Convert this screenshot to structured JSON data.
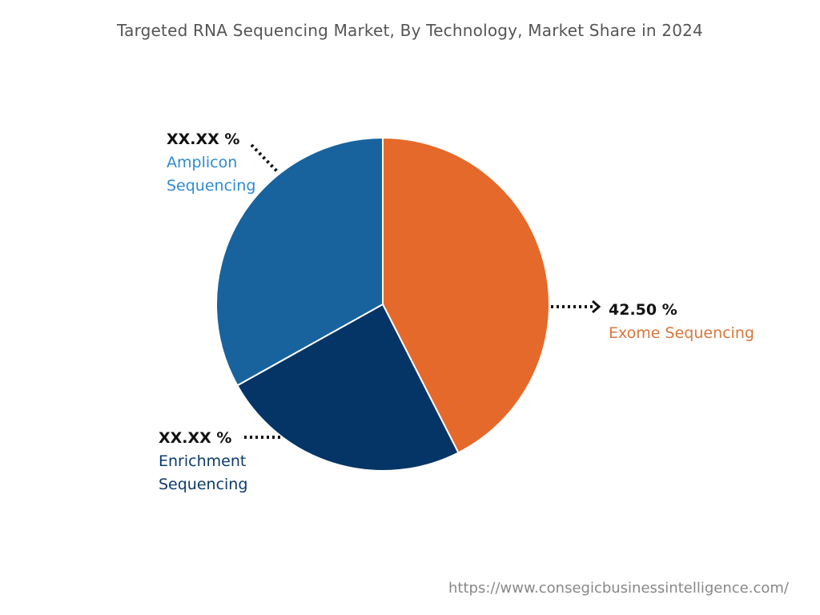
{
  "chart_data": {
    "type": "pie",
    "title": "Targeted RNA Sequencing Market, By Technology, Market Share in 2024",
    "slices": [
      {
        "name": "Exome Sequencing",
        "value": 42.5,
        "label": "42.50 %",
        "color": "#E5692A",
        "label_color": "#D9763A"
      },
      {
        "name": "Enrichment Sequencing",
        "value": 24.4,
        "label": "XX.XX %",
        "color": "#053566",
        "label_color": "#0D3B6B"
      },
      {
        "name": "Amplicon Sequencing",
        "value": 33.1,
        "label": "XX.XX %",
        "color": "#18639E",
        "label_color": "#2E8BD3"
      }
    ],
    "start": "top",
    "direction": "clockwise",
    "legend": "none"
  },
  "labels": {
    "amplicon": {
      "value": "XX.XX %",
      "line1": "Amplicon",
      "line2": "Sequencing"
    },
    "enrichment": {
      "value": "XX.XX %",
      "line1": "Enrichment",
      "line2": "Sequencing"
    },
    "exome": {
      "value": "42.50 %",
      "line1": "Exome Sequencing"
    }
  },
  "source": "https://www.consegicbusinessintelligence.com/"
}
